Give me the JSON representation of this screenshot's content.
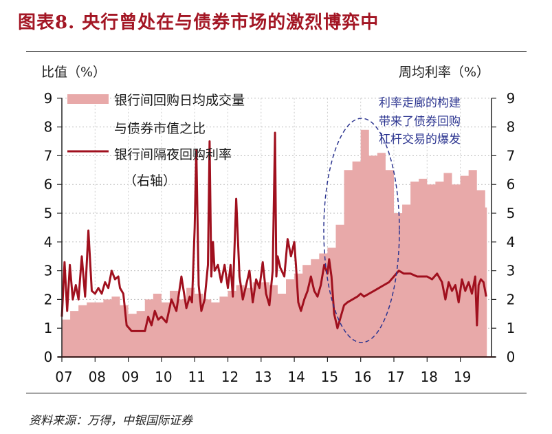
{
  "title": "图表8. 央行曾处在与债券市场的激烈博弈中",
  "left_axis_title": "比值（%）",
  "right_axis_title": "周均利率（%）",
  "source": "资料来源：万得，中银国际证券",
  "legend": {
    "series1_line1": "银行间回购日均成交量",
    "series1_line2": "与债券市值之比",
    "series2_line1": "银行间隔夜回购利率",
    "series2_line2": "（右轴）"
  },
  "annotation": {
    "line1": "利率走廊的构建",
    "line2": "带来了债券回购",
    "line3": "杠杆交易的爆发"
  },
  "colors": {
    "title": "#a31624",
    "bar_fill": "#e8a9a9",
    "line": "#a0101e",
    "annotation": "#2c3590",
    "ellipse": "#2c3590"
  },
  "chart_data": {
    "type": "area+line",
    "title": "央行曾处在与债券市场的激烈博弈中",
    "xlabel": "",
    "ylabel": "比值（%）",
    "ylabel_right": "周均利率（%）",
    "x_tick_labels": [
      "07",
      "08",
      "09",
      "10",
      "11",
      "12",
      "13",
      "14",
      "15",
      "16",
      "17",
      "18",
      "19"
    ],
    "ylim": [
      0,
      9
    ],
    "ylim_right": [
      0,
      9
    ],
    "y_ticks": [
      0,
      1,
      2,
      3,
      4,
      5,
      6,
      7,
      8,
      9
    ],
    "grid": true,
    "legend_position": "upper-left",
    "series": [
      {
        "name": "银行间回购日均成交量与债券市值之比",
        "axis": "left",
        "type": "area",
        "x": [
          2007.0,
          2007.25,
          2007.5,
          2007.75,
          2008.0,
          2008.25,
          2008.5,
          2008.75,
          2009.0,
          2009.25,
          2009.5,
          2009.75,
          2010.0,
          2010.25,
          2010.5,
          2010.75,
          2011.0,
          2011.25,
          2011.5,
          2011.75,
          2012.0,
          2012.25,
          2012.5,
          2012.75,
          2013.0,
          2013.25,
          2013.5,
          2013.75,
          2014.0,
          2014.25,
          2014.5,
          2014.75,
          2015.0,
          2015.25,
          2015.5,
          2015.75,
          2016.0,
          2016.25,
          2016.5,
          2016.75,
          2017.0,
          2017.25,
          2017.5,
          2017.75,
          2018.0,
          2018.25,
          2018.5,
          2018.75,
          2019.0,
          2019.25,
          2019.5,
          2019.75
        ],
        "values": [
          1.3,
          1.6,
          1.8,
          1.9,
          1.9,
          2.0,
          2.1,
          1.8,
          1.5,
          1.6,
          2.0,
          2.2,
          1.9,
          2.3,
          2.0,
          2.4,
          2.2,
          2.0,
          1.9,
          2.1,
          2.3,
          2.5,
          2.4,
          2.6,
          2.6,
          2.5,
          2.2,
          2.7,
          2.9,
          3.2,
          3.4,
          3.6,
          3.8,
          4.6,
          6.5,
          6.8,
          7.9,
          7.0,
          7.1,
          6.5,
          5.0,
          5.3,
          6.1,
          6.2,
          6.0,
          6.1,
          6.4,
          6.0,
          6.3,
          6.5,
          5.8,
          5.2
        ]
      },
      {
        "name": "银行间隔夜回购利率（右轴）",
        "axis": "right",
        "type": "line",
        "x": [
          2007.0,
          2007.08,
          2007.16,
          2007.24,
          2007.33,
          2007.42,
          2007.5,
          2007.6,
          2007.7,
          2007.8,
          2007.9,
          2008.0,
          2008.1,
          2008.2,
          2008.3,
          2008.4,
          2008.5,
          2008.6,
          2008.7,
          2008.75,
          2008.85,
          2008.95,
          2009.1,
          2009.3,
          2009.5,
          2009.6,
          2009.7,
          2009.8,
          2009.9,
          2010.0,
          2010.15,
          2010.3,
          2010.45,
          2010.6,
          2010.75,
          2010.85,
          2010.92,
          2011.0,
          2011.05,
          2011.12,
          2011.2,
          2011.3,
          2011.4,
          2011.45,
          2011.5,
          2011.55,
          2011.6,
          2011.7,
          2011.8,
          2011.9,
          2012.0,
          2012.08,
          2012.15,
          2012.25,
          2012.35,
          2012.45,
          2012.55,
          2012.65,
          2012.75,
          2012.85,
          2012.95,
          2013.05,
          2013.15,
          2013.25,
          2013.35,
          2013.42,
          2013.46,
          2013.5,
          2013.58,
          2013.7,
          2013.8,
          2013.9,
          2014.0,
          2014.05,
          2014.12,
          2014.2,
          2014.3,
          2014.4,
          2014.5,
          2014.6,
          2014.7,
          2014.8,
          2014.9,
          2015.0,
          2015.05,
          2015.12,
          2015.2,
          2015.3,
          2015.4,
          2015.5,
          2015.6,
          2015.75,
          2015.9,
          2016.0,
          2016.1,
          2016.25,
          2016.4,
          2016.55,
          2016.7,
          2016.85,
          2017.0,
          2017.15,
          2017.3,
          2017.5,
          2017.7,
          2017.9,
          2018.0,
          2018.15,
          2018.3,
          2018.45,
          2018.55,
          2018.65,
          2018.75,
          2018.85,
          2018.95,
          2019.05,
          2019.15,
          2019.25,
          2019.35,
          2019.45,
          2019.5,
          2019.55,
          2019.62,
          2019.7,
          2019.78
        ],
        "values": [
          1.4,
          3.3,
          1.6,
          3.2,
          2.0,
          2.5,
          2.0,
          3.5,
          2.1,
          4.4,
          2.3,
          2.2,
          2.4,
          2.2,
          2.6,
          2.4,
          3.0,
          2.7,
          2.8,
          2.4,
          2.2,
          1.1,
          0.9,
          0.9,
          0.9,
          1.4,
          1.1,
          1.6,
          1.3,
          1.4,
          1.2,
          2.0,
          1.6,
          2.8,
          1.7,
          2.1,
          1.9,
          4.5,
          7.2,
          2.5,
          1.6,
          2.0,
          3.2,
          7.5,
          2.8,
          4.0,
          3.0,
          3.2,
          2.6,
          3.2,
          2.4,
          3.2,
          2.1,
          5.5,
          2.8,
          2.0,
          2.5,
          3.0,
          1.9,
          2.7,
          2.4,
          3.3,
          2.2,
          1.8,
          3.0,
          7.8,
          2.8,
          3.5,
          3.1,
          2.8,
          4.1,
          3.5,
          4.0,
          3.2,
          1.9,
          1.6,
          2.0,
          2.3,
          2.8,
          2.3,
          2.1,
          2.5,
          3.2,
          2.9,
          3.4,
          2.8,
          1.5,
          1.0,
          1.4,
          1.8,
          1.9,
          2.0,
          2.1,
          2.2,
          2.1,
          2.2,
          2.3,
          2.4,
          2.5,
          2.6,
          2.8,
          3.0,
          2.9,
          2.9,
          2.8,
          2.8,
          2.8,
          2.7,
          2.9,
          2.6,
          2.0,
          2.6,
          2.3,
          2.5,
          1.9,
          2.7,
          2.3,
          2.6,
          2.2,
          2.8,
          1.1,
          2.5,
          2.7,
          2.6,
          2.1
        ]
      }
    ]
  }
}
